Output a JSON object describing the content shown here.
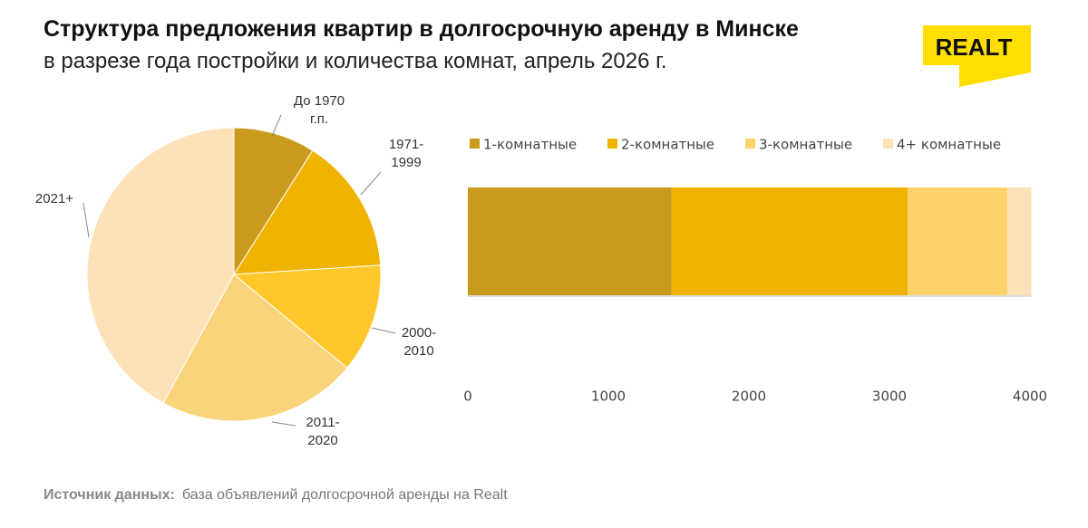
{
  "header": {
    "title": "Структура предложения квартир в долгосрочную аренду в Минске",
    "subtitle": "в разрезе года постройки и количества комнат, апрель 2026 г.",
    "logo": "REALT"
  },
  "chart_data": [
    {
      "type": "pie",
      "categories": [
        "До 1970 г.п.",
        "1971-1999",
        "2000-2010",
        "2011-2020",
        "2021+"
      ],
      "values": [
        9,
        15,
        12,
        22,
        42
      ],
      "colors": [
        "#c99a1b",
        "#f0b400",
        "#ffc72a",
        "#fad47a",
        "#fde2b8"
      ]
    },
    {
      "type": "stacked-barh",
      "categories": [
        null
      ],
      "series": [
        {
          "name": "1-комнатные",
          "color": "#c99a1b",
          "values": [
            1450
          ]
        },
        {
          "name": "2-комнатные",
          "color": "#f0b400",
          "values": [
            1680
          ]
        },
        {
          "name": "3-комнатные",
          "color": "#ffd36b",
          "values": [
            710
          ]
        },
        {
          "name": "4+ комнатные",
          "color": "#fde2b8",
          "values": [
            170
          ]
        }
      ],
      "xlim": [
        0,
        4000
      ],
      "xticks": [
        0,
        1000,
        2000,
        3000,
        4000
      ],
      "legend": "top",
      "grid": false
    }
  ],
  "footer": {
    "label": "Источник данных:",
    "text": "база объявлений долгосрочной аренды на Realt"
  }
}
